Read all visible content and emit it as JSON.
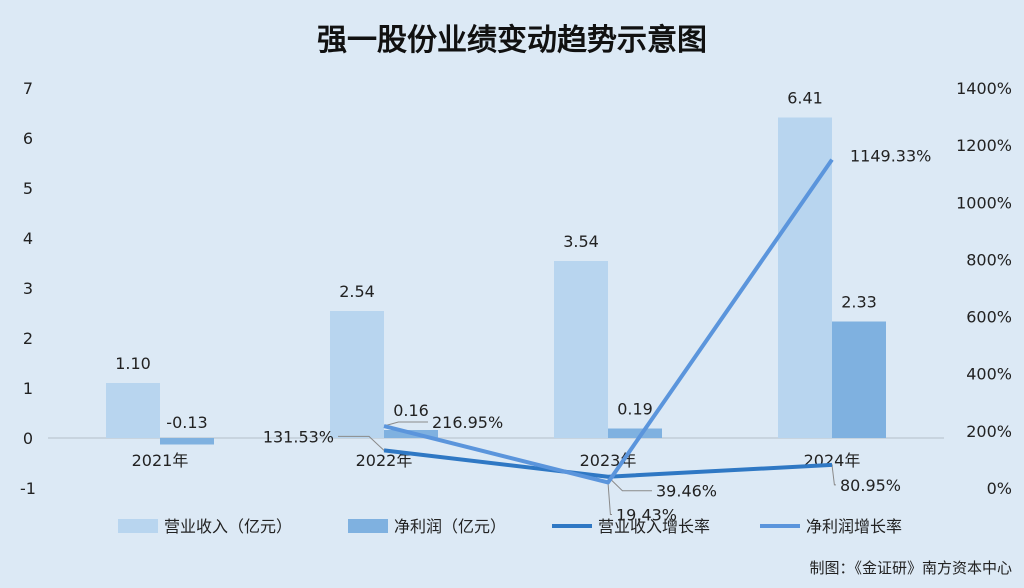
{
  "chart_data": {
    "type": "bar",
    "title": "强一股份业绩变动趋势示意图",
    "categories": [
      "2021年",
      "2022年",
      "2023年",
      "2024年"
    ],
    "y_left": {
      "min": -1,
      "max": 7,
      "ticks": [
        "-1",
        "0",
        "1",
        "2",
        "3",
        "4",
        "5",
        "6",
        "7"
      ]
    },
    "y_right": {
      "min": 0,
      "max": 1400,
      "ticks": [
        "0%",
        "200%",
        "400%",
        "600%",
        "800%",
        "1000%",
        "1200%",
        "1400%"
      ]
    },
    "series": [
      {
        "name": "营业收入（亿元）",
        "kind": "bar",
        "axis": "left",
        "color": "#b8d5ef",
        "values": [
          1.1,
          2.54,
          3.54,
          6.41
        ],
        "labels": [
          "1.10",
          "2.54",
          "3.54",
          "6.41"
        ]
      },
      {
        "name": "净利润（亿元）",
        "kind": "bar",
        "axis": "left",
        "color": "#7fb1e0",
        "values": [
          -0.13,
          0.16,
          0.19,
          2.33
        ],
        "labels": [
          "-0.13",
          "0.16",
          "0.19",
          "2.33"
        ]
      },
      {
        "name": "营业收入增长率",
        "kind": "line",
        "axis": "right",
        "color": "#2f78c4",
        "values": [
          null,
          131.53,
          39.46,
          80.95
        ],
        "labels": [
          null,
          "131.53%",
          "39.46%",
          "80.95%"
        ]
      },
      {
        "name": "净利润增长率",
        "kind": "line",
        "axis": "right",
        "color": "#5b95dc",
        "values": [
          null,
          216.95,
          19.43,
          1149.33
        ],
        "labels": [
          null,
          "216.95%",
          "19.43%",
          "1149.33%"
        ]
      }
    ],
    "legend_position": "bottom",
    "grid": false
  },
  "source_note": "制图：《金证研》南方资本中心"
}
